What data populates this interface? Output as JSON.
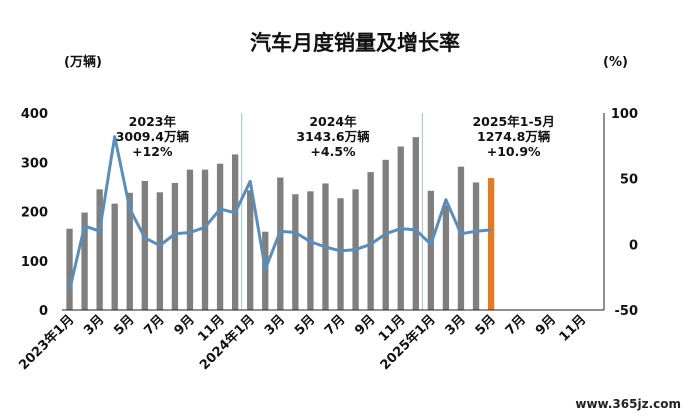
{
  "chart_data": {
    "type": "bar",
    "title": "汽车月度销量及增长率",
    "left_unit": "(万辆)",
    "right_unit": "(%)",
    "ylim": [
      0,
      400
    ],
    "y_ticks": [
      0,
      100,
      200,
      300,
      400
    ],
    "y2lim": [
      -50,
      100
    ],
    "y2_ticks": [
      -50,
      0,
      50,
      100
    ],
    "categories": [
      "2023年1月",
      "2月",
      "3月",
      "4月",
      "5月",
      "6月",
      "7月",
      "8月",
      "9月",
      "10月",
      "11月",
      "12月",
      "2024年1月",
      "2月",
      "3月",
      "4月",
      "5月",
      "6月",
      "7月",
      "8月",
      "9月",
      "10月",
      "11月",
      "12月",
      "2025年1月",
      "2月",
      "3月",
      "4月",
      "5月",
      "6月",
      "7月",
      "8月",
      "9月",
      "10月",
      "11月",
      "12月"
    ],
    "x_tick_labels": [
      "2023年1月",
      "3月",
      "5月",
      "7月",
      "9月",
      "11月",
      "2024年1月",
      "3月",
      "5月",
      "7月",
      "9月",
      "11月",
      "2025年1月",
      "3月",
      "5月",
      "7月",
      "9月",
      "11月"
    ],
    "series": [
      {
        "type": "bar",
        "color": "#7f7f7f",
        "highlight_color": "#e07b2a",
        "values": [
          165,
          198,
          245,
          216,
          238,
          262,
          239,
          258,
          285,
          285,
          297,
          316,
          243,
          159,
          269,
          235,
          241,
          257,
          227,
          245,
          280,
          305,
          332,
          351,
          242,
          213,
          291,
          259,
          268,
          null,
          null,
          null,
          null,
          null,
          null,
          null
        ]
      },
      {
        "type": "line",
        "axis": "right",
        "color": "#5b8db8",
        "values": [
          -35,
          14,
          10,
          82,
          27,
          5,
          -1,
          8,
          9,
          13,
          27,
          24,
          48,
          -19,
          10,
          9,
          2,
          -2,
          -5,
          -4,
          0,
          8,
          12,
          11,
          0,
          34,
          8,
          10,
          11,
          null,
          null,
          null,
          null,
          null,
          null,
          null
        ]
      }
    ],
    "annotations": [
      {
        "lines": [
          "2023年",
          "3009.4万辆",
          "+12%"
        ]
      },
      {
        "lines": [
          "2024年",
          "3143.6万辆",
          "+4.5%"
        ]
      },
      {
        "lines": [
          "2025年1-5月",
          "1274.8万辆",
          "+10.9%"
        ]
      }
    ]
  },
  "watermark": "www.365jz.com"
}
